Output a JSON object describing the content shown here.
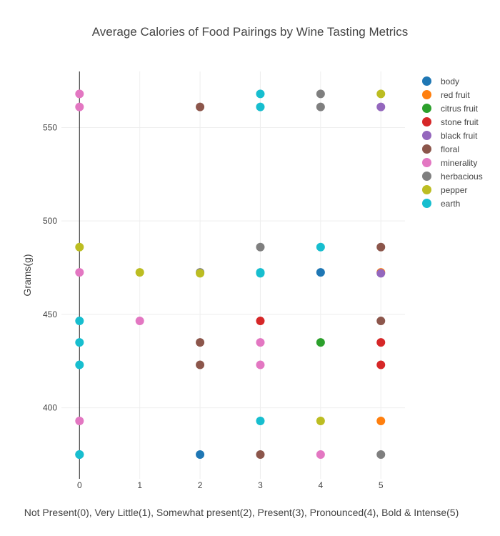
{
  "chart_data": {
    "type": "scatter",
    "title": "Average Calories of Food Pairings by Wine Tasting Metrics",
    "xlabel": "Not Present(0), Very Little(1), Somewhat present(2), Present(3), Pronounced(4), Bold & Intense(5)",
    "ylabel": "Grams(g)",
    "xlim": [
      -0.3,
      5.4
    ],
    "ylim": [
      362,
      580
    ],
    "xticks": [
      0,
      1,
      2,
      3,
      4,
      5
    ],
    "yticks": [
      400,
      450,
      500,
      550
    ],
    "grid": true,
    "legend_position": "top-right",
    "series": [
      {
        "name": "body",
        "color": "#1f77b4",
        "points": [
          [
            0,
            375
          ],
          [
            2,
            375
          ],
          [
            4,
            472.5
          ]
        ]
      },
      {
        "name": "red fruit",
        "color": "#ff7f0e",
        "points": [
          [
            5,
            393
          ],
          [
            5,
            472.5
          ]
        ]
      },
      {
        "name": "citrus fruit",
        "color": "#2ca02c",
        "points": [
          [
            4,
            435
          ]
        ]
      },
      {
        "name": "stone fruit",
        "color": "#d62728",
        "points": [
          [
            3,
            446.5
          ],
          [
            5,
            435
          ],
          [
            5,
            423
          ]
        ]
      },
      {
        "name": "black fruit",
        "color": "#9467bd",
        "points": [
          [
            5,
            561
          ],
          [
            5,
            472
          ]
        ]
      },
      {
        "name": "floral",
        "color": "#8c564b",
        "points": [
          [
            2,
            561
          ],
          [
            2,
            435
          ],
          [
            2,
            423
          ],
          [
            3,
            375
          ],
          [
            5,
            486
          ],
          [
            5,
            446.5
          ]
        ]
      },
      {
        "name": "minerality",
        "color": "#e377c2",
        "points": [
          [
            0,
            568
          ],
          [
            0,
            561
          ],
          [
            0,
            472.5
          ],
          [
            0,
            393
          ],
          [
            1,
            446.5
          ],
          [
            3,
            435
          ],
          [
            3,
            423
          ],
          [
            4,
            375
          ]
        ]
      },
      {
        "name": "herbacious",
        "color": "#7f7f7f",
        "points": [
          [
            2,
            472.5
          ],
          [
            3,
            486
          ],
          [
            4,
            568
          ],
          [
            4,
            561
          ],
          [
            5,
            375
          ]
        ]
      },
      {
        "name": "pepper",
        "color": "#bcbd22",
        "points": [
          [
            0,
            486
          ],
          [
            1,
            472.5
          ],
          [
            2,
            472
          ],
          [
            4,
            393
          ],
          [
            5,
            568
          ]
        ]
      },
      {
        "name": "earth",
        "color": "#17becf",
        "points": [
          [
            0,
            446.5
          ],
          [
            0,
            435
          ],
          [
            0,
            423
          ],
          [
            0,
            375
          ],
          [
            3,
            568
          ],
          [
            3,
            561
          ],
          [
            3,
            472.5
          ],
          [
            3,
            472
          ],
          [
            3,
            393
          ],
          [
            4,
            486
          ]
        ]
      }
    ]
  }
}
